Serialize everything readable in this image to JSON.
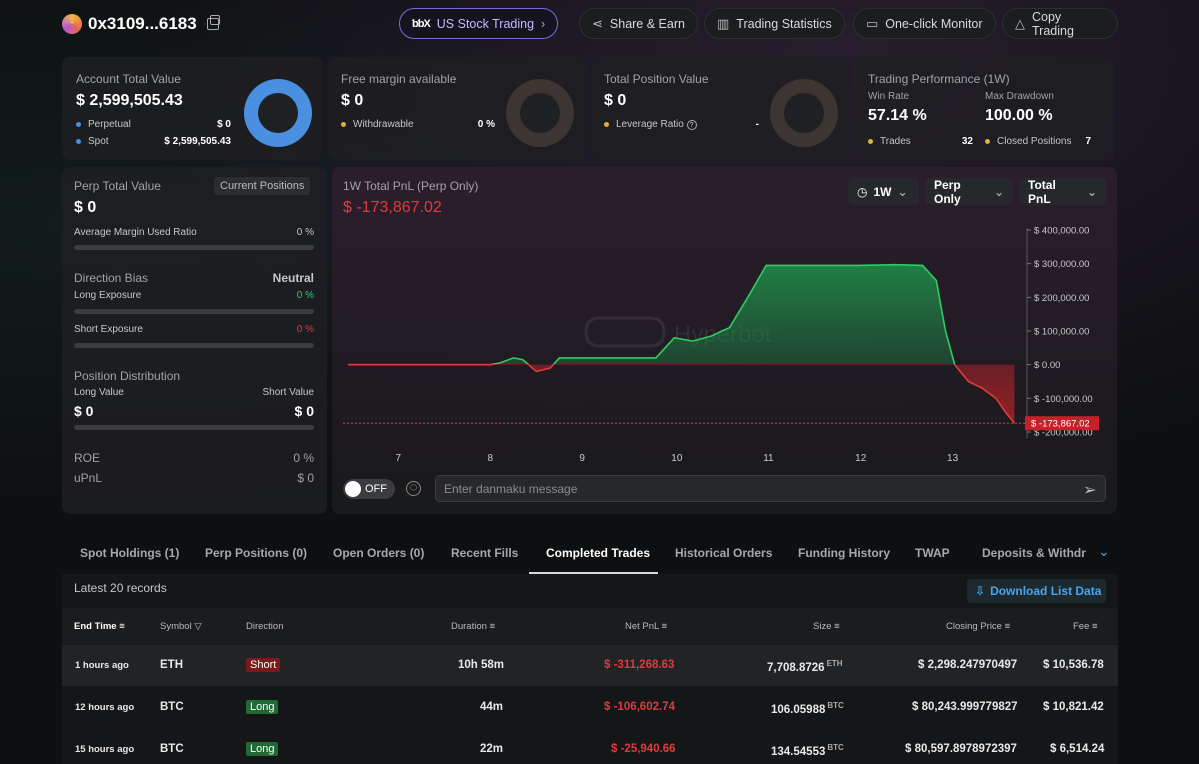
{
  "header": {
    "address": "0x3109...6183",
    "buttons": {
      "stock": "US Stock Trading",
      "share": "Share & Earn",
      "stats": "Trading Statistics",
      "monitor": "One-click Monitor",
      "copy": "Copy Trading"
    }
  },
  "cards": {
    "account": {
      "title": "Account Total Value",
      "value": "$ 2,599,505.43",
      "perp_label": "Perpetual",
      "perp_value": "$ 0",
      "spot_label": "Spot",
      "spot_value": "$ 2,599,505.43"
    },
    "margin": {
      "title": "Free margin available",
      "value": "$ 0",
      "withdrawable_label": "Withdrawable",
      "withdrawable_value": "0 %"
    },
    "position": {
      "title": "Total Position Value",
      "value": "$ 0",
      "leverage_label": "Leverage Ratio",
      "leverage_value": "-"
    },
    "performance": {
      "title": "Trading Performance (1W)",
      "winrate_label": "Win Rate",
      "winrate_value": "57.14 %",
      "drawdown_label": "Max Drawdown",
      "drawdown_value": "100.00 %",
      "trades_label": "Trades",
      "trades_value": "32",
      "closed_label": "Closed Positions",
      "closed_value": "7"
    }
  },
  "left_panel": {
    "perp_title": "Perp Total Value",
    "current_positions": "Current Positions",
    "perp_value": "$ 0",
    "avg_margin_label": "Average Margin Used Ratio",
    "avg_margin_value": "0 %",
    "direction_title": "Direction Bias",
    "direction_value": "Neutral",
    "long_exposure_label": "Long Exposure",
    "long_exposure_value": "0 %",
    "short_exposure_label": "Short Exposure",
    "short_exposure_value": "0 %",
    "distribution_title": "Position Distribution",
    "long_value_label": "Long Value",
    "long_value": "$ 0",
    "short_value_label": "Short Value",
    "short_value": "$ 0",
    "roe_label": "ROE",
    "roe_value": "0 %",
    "upnl_label": "uPnL",
    "upnl_value": "$ 0"
  },
  "chart_panel": {
    "title": "1W Total PnL (Perp Only)",
    "value": "$ -173,867.02",
    "selectors": {
      "range": "1W",
      "scope": "Perp Only",
      "metric": "Total PnL"
    },
    "watermark": "Hyperbot",
    "current_label": "$ -173,867.02",
    "toggle_label": "OFF",
    "danmaku_placeholder": "Enter danmaku message"
  },
  "chart_data": {
    "type": "area",
    "xlabel": "",
    "ylabel": "",
    "x_ticks": [
      "7",
      "8",
      "9",
      "10",
      "11",
      "12",
      "13"
    ],
    "y_ticks": [
      "$ 400,000.00",
      "$ 300,000.00",
      "$ 200,000.00",
      "$ 100,000.00",
      "$ 0.00",
      "$ -100,000.00",
      "$ -200,000.00"
    ],
    "ylim": [
      -200000,
      400000
    ],
    "xlim": [
      6.45,
      13.75
    ],
    "x": [
      6.45,
      7.0,
      7.5,
      8.0,
      8.1,
      8.25,
      8.35,
      8.5,
      8.65,
      8.75,
      9.0,
      9.5,
      9.8,
      9.9,
      10.0,
      10.2,
      10.4,
      10.6,
      10.8,
      11.0,
      11.5,
      12.0,
      12.4,
      12.7,
      12.85,
      12.95,
      13.05,
      13.2,
      13.35,
      13.5,
      13.6,
      13.7
    ],
    "values": [
      0,
      0,
      0,
      0,
      5000,
      20000,
      15000,
      -20000,
      -10000,
      20000,
      20000,
      20000,
      20000,
      50000,
      80000,
      70000,
      85000,
      110000,
      200000,
      295000,
      295000,
      295000,
      297000,
      295000,
      250000,
      100000,
      0,
      -50000,
      -70000,
      -100000,
      -140000,
      -173867
    ]
  },
  "tabs": {
    "spot": "Spot Holdings (1)",
    "perp": "Perp Positions (0)",
    "orders": "Open Orders (0)",
    "fills": "Recent Fills",
    "completed": "Completed Trades",
    "historical": "Historical Orders",
    "funding": "Funding History",
    "twap": "TWAP",
    "deposits": "Deposits & Withdraw"
  },
  "table": {
    "records_label": "Latest 20 records",
    "download": "Download List Data",
    "headers": {
      "end_time": "End Time",
      "symbol": "Symbol",
      "direction": "Direction",
      "duration": "Duration",
      "net_pnl": "Net PnL",
      "size": "Size",
      "closing_price": "Closing Price",
      "fee": "Fee"
    },
    "rows": [
      {
        "end_time": "1 hours ago",
        "symbol": "ETH",
        "direction": "Short",
        "duration": "10h 58m",
        "net_pnl": "$ -311,268.63",
        "size": "7,708.8726",
        "unit": "ETH",
        "closing_price": "$ 2,298.247970497",
        "fee": "$ 10,536.78"
      },
      {
        "end_time": "12 hours ago",
        "symbol": "BTC",
        "direction": "Long",
        "duration": "44m",
        "net_pnl": "$ -106,602.74",
        "size": "106.05988",
        "unit": "BTC",
        "closing_price": "$ 80,243.999779827",
        "fee": "$ 10,821.42"
      },
      {
        "end_time": "15 hours ago",
        "symbol": "BTC",
        "direction": "Long",
        "duration": "22m",
        "net_pnl": "$ -25,940.66",
        "size": "134.54553",
        "unit": "BTC",
        "closing_price": "$ 80,597.8978972397",
        "fee": "$ 6,514.24"
      }
    ]
  },
  "colors": {
    "green": "#2fcc64",
    "red": "#e03b3b",
    "blue": "#4a8fe0",
    "yellow": "#e0b23a"
  }
}
